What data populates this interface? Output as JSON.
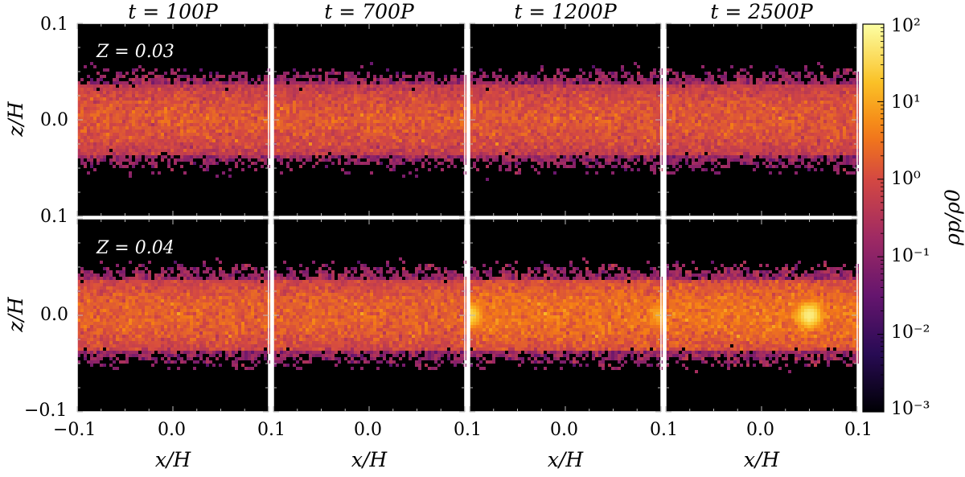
{
  "figure": {
    "column_titles": [
      "t = 100P",
      "t = 700P",
      "t = 1200P",
      "t = 2500P"
    ],
    "row_labels": [
      "Z = 0.03",
      "Z = 0.04"
    ],
    "xlabel": "x/H",
    "ylabel": "z/H",
    "x_ticks": [
      "−0.1",
      "0.0",
      "0.1"
    ],
    "y_ticks": [
      "0.1",
      "0.0",
      "−0.1"
    ],
    "colorbar": {
      "label": "ρp/ρ0",
      "ticks": [
        "10²",
        "10¹",
        "10⁰",
        "10⁻¹",
        "10⁻²",
        "10⁻³"
      ]
    }
  },
  "chart_data": {
    "type": "heatmap",
    "title": "",
    "xlabel": "x/H",
    "ylabel": "z/H",
    "xlim": [
      -0.1,
      0.1
    ],
    "ylim": [
      -0.1,
      0.1
    ],
    "colorbar_label": "ρp/ρ0",
    "colorbar_scale": "log",
    "colorbar_range": [
      0.001,
      100
    ],
    "colormap": "inferno-like",
    "panels": [
      {
        "row": "Z = 0.03",
        "time": "t = 100P",
        "layer_half_thickness": 0.045,
        "peak_density": 1.5,
        "clumps": []
      },
      {
        "row": "Z = 0.03",
        "time": "t = 700P",
        "layer_half_thickness": 0.045,
        "peak_density": 1.5,
        "clumps": []
      },
      {
        "row": "Z = 0.03",
        "time": "t = 1200P",
        "layer_half_thickness": 0.046,
        "peak_density": 1.5,
        "clumps": []
      },
      {
        "row": "Z = 0.03",
        "time": "t = 2500P",
        "layer_half_thickness": 0.046,
        "peak_density": 1.5,
        "clumps": []
      },
      {
        "row": "Z = 0.04",
        "time": "t = 100P",
        "layer_half_thickness": 0.046,
        "peak_density": 2,
        "clumps": []
      },
      {
        "row": "Z = 0.04",
        "time": "t = 700P",
        "layer_half_thickness": 0.046,
        "peak_density": 2,
        "clumps": []
      },
      {
        "row": "Z = 0.04",
        "time": "t = 1200P",
        "layer_half_thickness": 0.046,
        "peak_density": 3,
        "clumps": [
          {
            "x": -0.1,
            "z": 0.0,
            "density": 30
          },
          {
            "x": 0.1,
            "z": 0.0,
            "density": 10
          }
        ]
      },
      {
        "row": "Z = 0.04",
        "time": "t = 2500P",
        "layer_half_thickness": 0.047,
        "peak_density": 3,
        "clumps": [
          {
            "x": 0.05,
            "z": 0.0,
            "density": 60
          }
        ]
      }
    ]
  },
  "colors": {
    "background": "#000000",
    "frame": "#ffffff"
  }
}
